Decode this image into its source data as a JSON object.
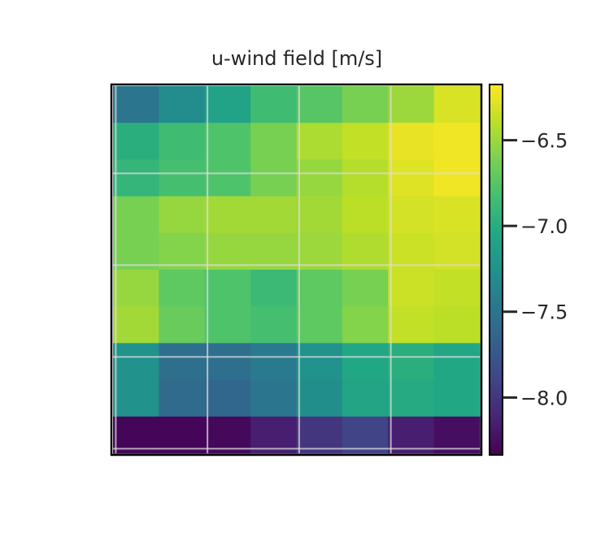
{
  "chart_data": {
    "type": "heatmap",
    "title": "u-wind field [m/s]",
    "xlabel": "",
    "ylabel": "",
    "colormap": "viridis",
    "grid": true,
    "x_ticks_shown": false,
    "y_ticks_shown": false,
    "colorbar": {
      "vmin": -8.33,
      "vmax": -6.18,
      "ticks": [
        -6.5,
        -7.0,
        -7.5,
        -8.0
      ],
      "tick_labels": [
        "−6.5",
        "−7.0",
        "−7.5",
        "−8.0"
      ],
      "position": "right"
    },
    "values": [
      [
        -7.5,
        -7.3,
        -7.1,
        -6.85,
        -6.75,
        -6.62,
        -6.5,
        -6.3
      ],
      [
        -6.98,
        -6.85,
        -6.78,
        -6.62,
        -6.45,
        -6.38,
        -6.25,
        -6.22
      ],
      [
        -6.92,
        -6.82,
        -6.78,
        -6.62,
        -6.52,
        -6.42,
        -6.28,
        -6.22
      ],
      [
        -6.62,
        -6.52,
        -6.48,
        -6.48,
        -6.48,
        -6.4,
        -6.32,
        -6.3
      ],
      [
        -6.62,
        -6.58,
        -6.52,
        -6.52,
        -6.5,
        -6.44,
        -6.35,
        -6.32
      ],
      [
        -6.52,
        -6.72,
        -6.78,
        -6.88,
        -6.72,
        -6.62,
        -6.35,
        -6.38
      ],
      [
        -6.48,
        -6.68,
        -6.78,
        -6.82,
        -6.72,
        -6.58,
        -6.38,
        -6.4
      ],
      [
        -7.25,
        -7.55,
        -7.55,
        -7.45,
        -7.25,
        -7.05,
        -6.98,
        -7.05
      ],
      [
        -7.25,
        -7.58,
        -7.62,
        -7.5,
        -7.28,
        -7.08,
        -7.02,
        -7.05
      ],
      [
        -8.3,
        -8.3,
        -8.28,
        -8.15,
        -8.0,
        -7.9,
        -8.15,
        -8.25
      ]
    ]
  }
}
